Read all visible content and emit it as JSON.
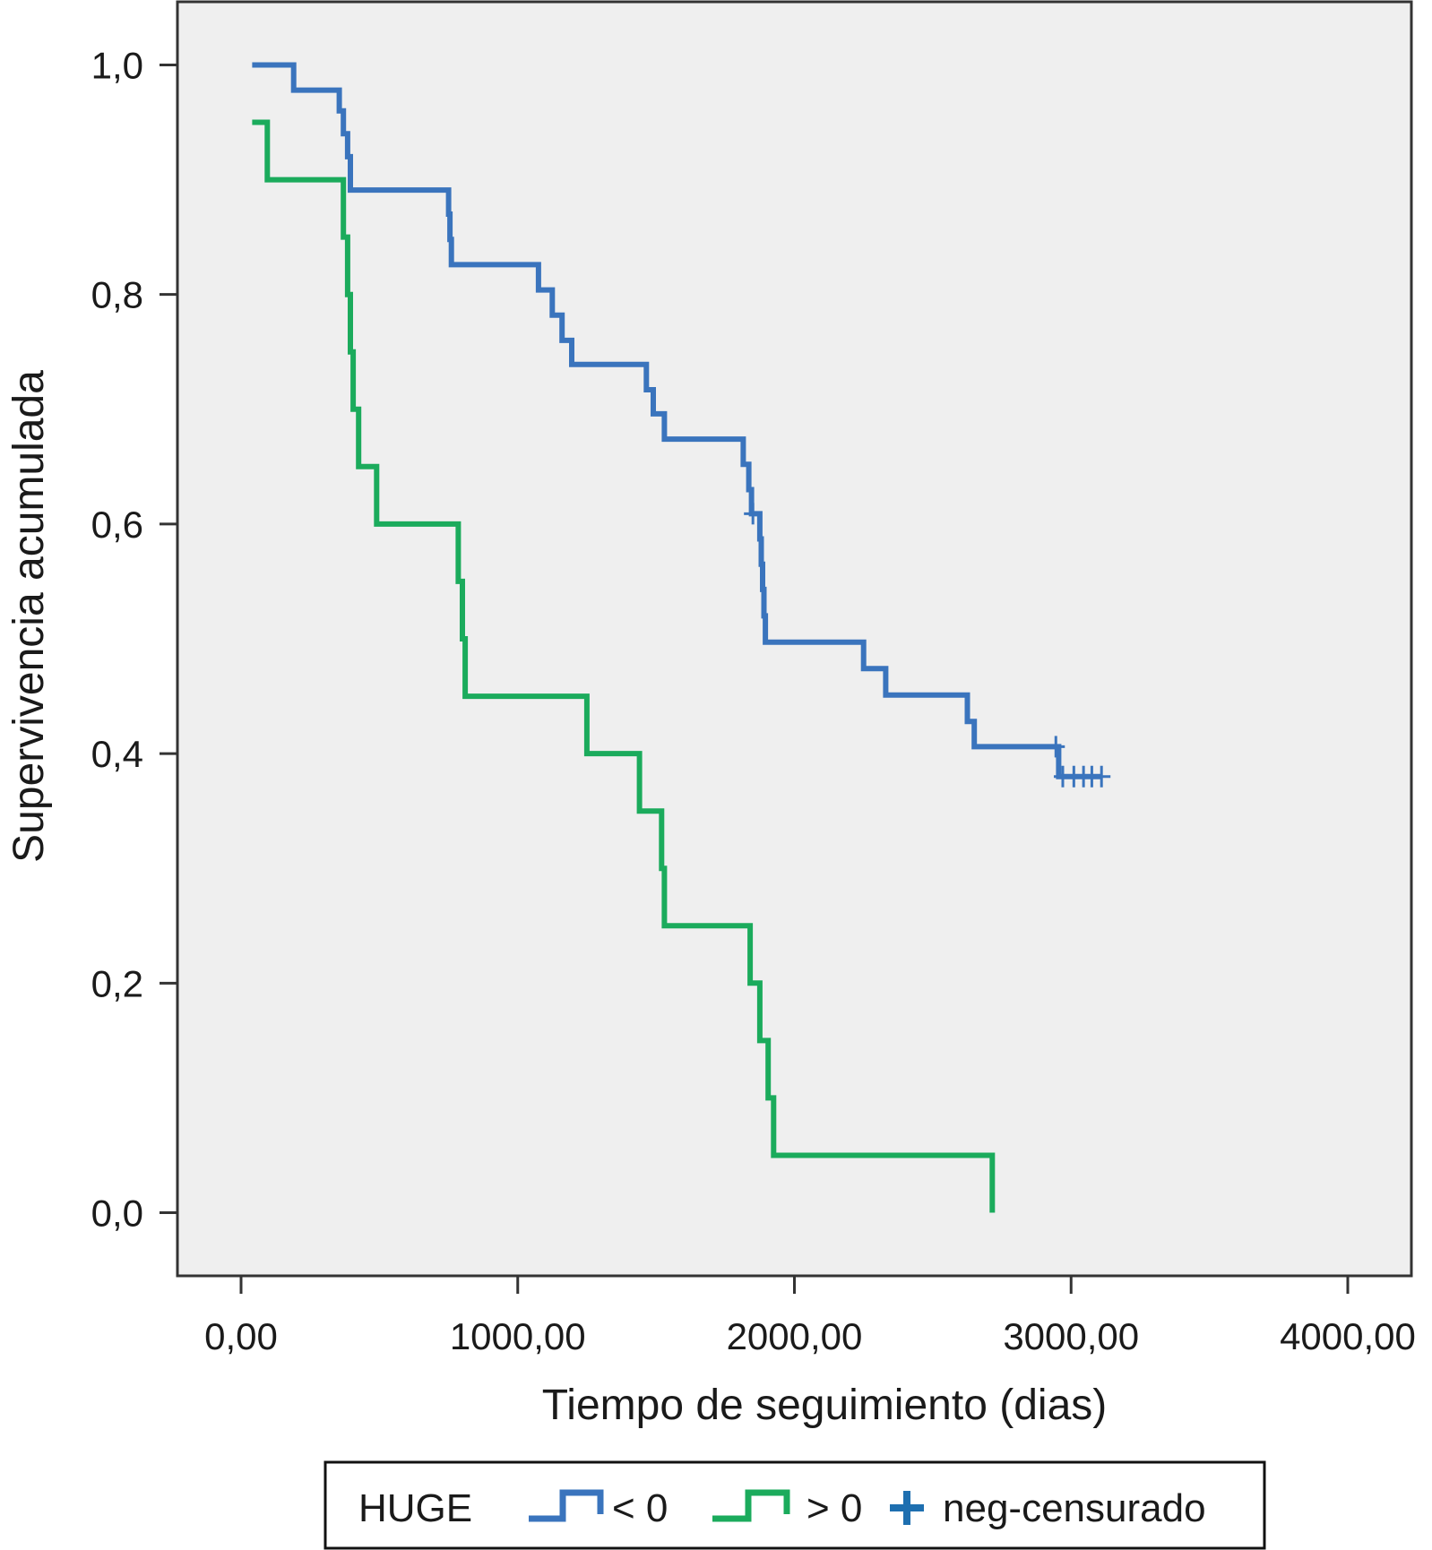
{
  "chart_data": {
    "type": "line",
    "subtype": "kaplan-meier step",
    "title": "",
    "xlabel": "Tiempo de seguimiento (dias)",
    "ylabel": "Supervivencia acumulada",
    "xlim": [
      -230,
      4230
    ],
    "ylim": [
      -0.055,
      1.055
    ],
    "x_ticks": [
      0,
      1000,
      2000,
      3000,
      4000
    ],
    "x_tick_labels": [
      "0,00",
      "1000,00",
      "2000,00",
      "3000,00",
      "4000,00"
    ],
    "y_ticks": [
      0,
      0.2,
      0.4,
      0.6,
      0.8,
      1.0
    ],
    "y_tick_labels": [
      "0,0",
      "0,2",
      "0,4",
      "0,6",
      "0,8",
      "1,0"
    ],
    "grid": false,
    "background": "#efefef",
    "legend": {
      "placement": "bottom",
      "title": "HUGE",
      "entries": [
        "< 0",
        "> 0",
        "neg-censurado"
      ]
    },
    "series": [
      {
        "name": "< 0",
        "color": "#3a74bd",
        "points": [
          [
            40,
            1.0
          ],
          [
            190,
            1.0
          ],
          [
            190,
            0.978
          ],
          [
            355,
            0.978
          ],
          [
            355,
            0.96
          ],
          [
            370,
            0.96
          ],
          [
            370,
            0.94
          ],
          [
            385,
            0.94
          ],
          [
            385,
            0.92
          ],
          [
            395,
            0.92
          ],
          [
            395,
            0.891
          ],
          [
            750,
            0.891
          ],
          [
            750,
            0.87
          ],
          [
            755,
            0.87
          ],
          [
            755,
            0.848
          ],
          [
            760,
            0.848
          ],
          [
            760,
            0.826
          ],
          [
            1075,
            0.826
          ],
          [
            1075,
            0.804
          ],
          [
            1125,
            0.804
          ],
          [
            1125,
            0.782
          ],
          [
            1160,
            0.782
          ],
          [
            1160,
            0.76
          ],
          [
            1195,
            0.76
          ],
          [
            1195,
            0.739
          ],
          [
            1465,
            0.739
          ],
          [
            1465,
            0.717
          ],
          [
            1490,
            0.717
          ],
          [
            1490,
            0.696
          ],
          [
            1530,
            0.696
          ],
          [
            1530,
            0.674
          ],
          [
            1815,
            0.674
          ],
          [
            1815,
            0.652
          ],
          [
            1835,
            0.652
          ],
          [
            1835,
            0.63
          ],
          [
            1845,
            0.63
          ],
          [
            1845,
            0.609
          ],
          [
            1875,
            0.609
          ],
          [
            1875,
            0.587
          ],
          [
            1880,
            0.587
          ],
          [
            1880,
            0.565
          ],
          [
            1885,
            0.565
          ],
          [
            1885,
            0.543
          ],
          [
            1890,
            0.543
          ],
          [
            1890,
            0.52
          ],
          [
            1895,
            0.52
          ],
          [
            1895,
            0.497
          ],
          [
            2250,
            0.497
          ],
          [
            2250,
            0.474
          ],
          [
            2330,
            0.474
          ],
          [
            2330,
            0.451
          ],
          [
            2625,
            0.451
          ],
          [
            2625,
            0.428
          ],
          [
            2650,
            0.428
          ],
          [
            2650,
            0.406
          ],
          [
            2955,
            0.406
          ],
          [
            2955,
            0.38
          ],
          [
            3110,
            0.38
          ]
        ],
        "censored": [
          [
            1850,
            0.609
          ],
          [
            2945,
            0.406
          ],
          [
            2970,
            0.38
          ],
          [
            3010,
            0.38
          ],
          [
            3045,
            0.38
          ],
          [
            3075,
            0.38
          ],
          [
            3110,
            0.38
          ]
        ]
      },
      {
        "name": "> 0",
        "color": "#1bab5c",
        "points": [
          [
            40,
            0.95
          ],
          [
            95,
            0.95
          ],
          [
            95,
            0.9
          ],
          [
            370,
            0.9
          ],
          [
            370,
            0.85
          ],
          [
            385,
            0.85
          ],
          [
            385,
            0.8
          ],
          [
            395,
            0.8
          ],
          [
            395,
            0.75
          ],
          [
            405,
            0.75
          ],
          [
            405,
            0.7
          ],
          [
            425,
            0.7
          ],
          [
            425,
            0.65
          ],
          [
            490,
            0.65
          ],
          [
            490,
            0.6
          ],
          [
            785,
            0.6
          ],
          [
            785,
            0.55
          ],
          [
            800,
            0.55
          ],
          [
            800,
            0.5
          ],
          [
            810,
            0.5
          ],
          [
            810,
            0.45
          ],
          [
            1250,
            0.45
          ],
          [
            1250,
            0.4
          ],
          [
            1440,
            0.4
          ],
          [
            1440,
            0.35
          ],
          [
            1520,
            0.35
          ],
          [
            1520,
            0.3
          ],
          [
            1530,
            0.3
          ],
          [
            1530,
            0.25
          ],
          [
            1840,
            0.25
          ],
          [
            1840,
            0.2
          ],
          [
            1875,
            0.2
          ],
          [
            1875,
            0.15
          ],
          [
            1905,
            0.15
          ],
          [
            1905,
            0.1
          ],
          [
            1925,
            0.1
          ],
          [
            1925,
            0.05
          ],
          [
            2715,
            0.05
          ],
          [
            2715,
            0.0
          ]
        ],
        "censored": []
      }
    ]
  },
  "legend_colors": {
    "censored_marker": "#1e6fb0"
  }
}
